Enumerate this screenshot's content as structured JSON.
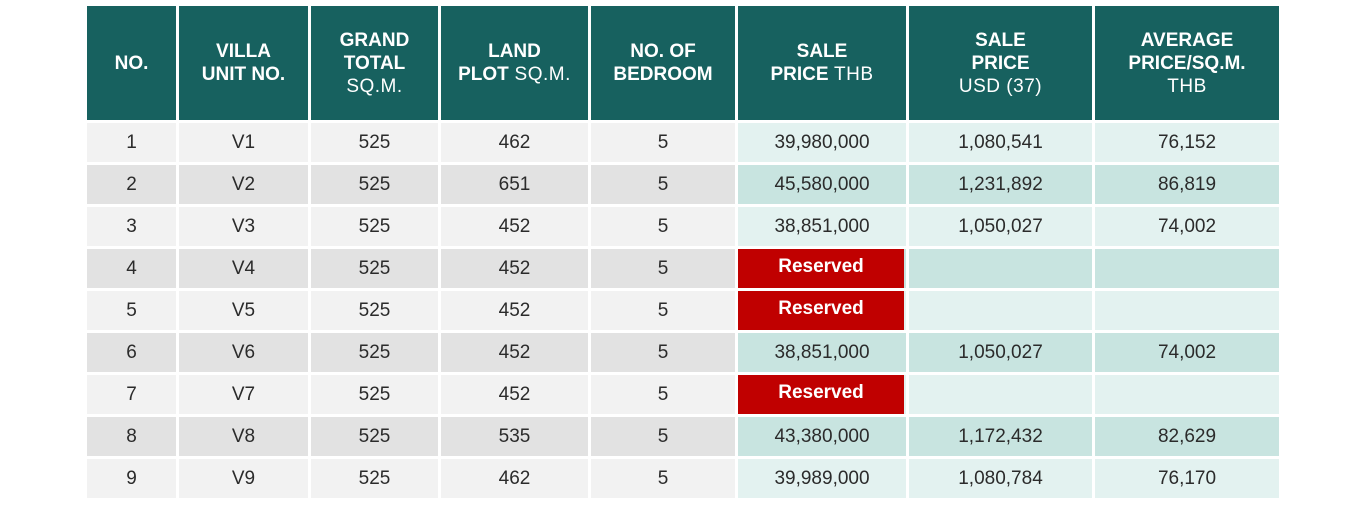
{
  "headers": [
    {
      "bold1": "NO.",
      "bold2": "",
      "light2": "",
      "light3": ""
    },
    {
      "bold1": "VILLA",
      "bold2": "UNIT NO.",
      "light2": "",
      "light3": ""
    },
    {
      "bold1": "GRAND",
      "bold2": "TOTAL",
      "light2": "",
      "light3": "SQ.M."
    },
    {
      "bold1": "LAND",
      "bold2": "PLOT",
      "light2": " SQ.M.",
      "light3": ""
    },
    {
      "bold1": "NO. OF",
      "bold2": "BEDROOM",
      "light2": "",
      "light3": ""
    },
    {
      "bold1": "SALE",
      "bold2": "PRICE",
      "light2": " THB",
      "light3": ""
    },
    {
      "bold1": "SALE",
      "bold2": "PRICE",
      "light2": "",
      "light3": "USD (37)"
    },
    {
      "bold1": "AVERAGE",
      "bold2": "PRICE/SQ.M.",
      "light2": "",
      "light3": "THB"
    }
  ],
  "reserved_label": "Reserved",
  "rows": [
    {
      "no": "1",
      "unit": "V1",
      "total": "525",
      "land": "462",
      "bed": "5",
      "thb": "39,980,000",
      "usd": "1,080,541",
      "avg": "76,152",
      "reserved": false
    },
    {
      "no": "2",
      "unit": "V2",
      "total": "525",
      "land": "651",
      "bed": "5",
      "thb": "45,580,000",
      "usd": "1,231,892",
      "avg": "86,819",
      "reserved": false
    },
    {
      "no": "3",
      "unit": "V3",
      "total": "525",
      "land": "452",
      "bed": "5",
      "thb": "38,851,000",
      "usd": "1,050,027",
      "avg": "74,002",
      "reserved": false
    },
    {
      "no": "4",
      "unit": "V4",
      "total": "525",
      "land": "452",
      "bed": "5",
      "thb": "",
      "usd": "",
      "avg": "",
      "reserved": true
    },
    {
      "no": "5",
      "unit": "V5",
      "total": "525",
      "land": "452",
      "bed": "5",
      "thb": "",
      "usd": "",
      "avg": "",
      "reserved": true
    },
    {
      "no": "6",
      "unit": "V6",
      "total": "525",
      "land": "452",
      "bed": "5",
      "thb": "38,851,000",
      "usd": "1,050,027",
      "avg": "74,002",
      "reserved": false
    },
    {
      "no": "7",
      "unit": "V7",
      "total": "525",
      "land": "452",
      "bed": "5",
      "thb": "",
      "usd": "",
      "avg": "",
      "reserved": true
    },
    {
      "no": "8",
      "unit": "V8",
      "total": "525",
      "land": "535",
      "bed": "5",
      "thb": "43,380,000",
      "usd": "1,172,432",
      "avg": "82,629",
      "reserved": false
    },
    {
      "no": "9",
      "unit": "V9",
      "total": "525",
      "land": "462",
      "bed": "5",
      "thb": "39,989,000",
      "usd": "1,080,784",
      "avg": "76,170",
      "reserved": false
    }
  ]
}
